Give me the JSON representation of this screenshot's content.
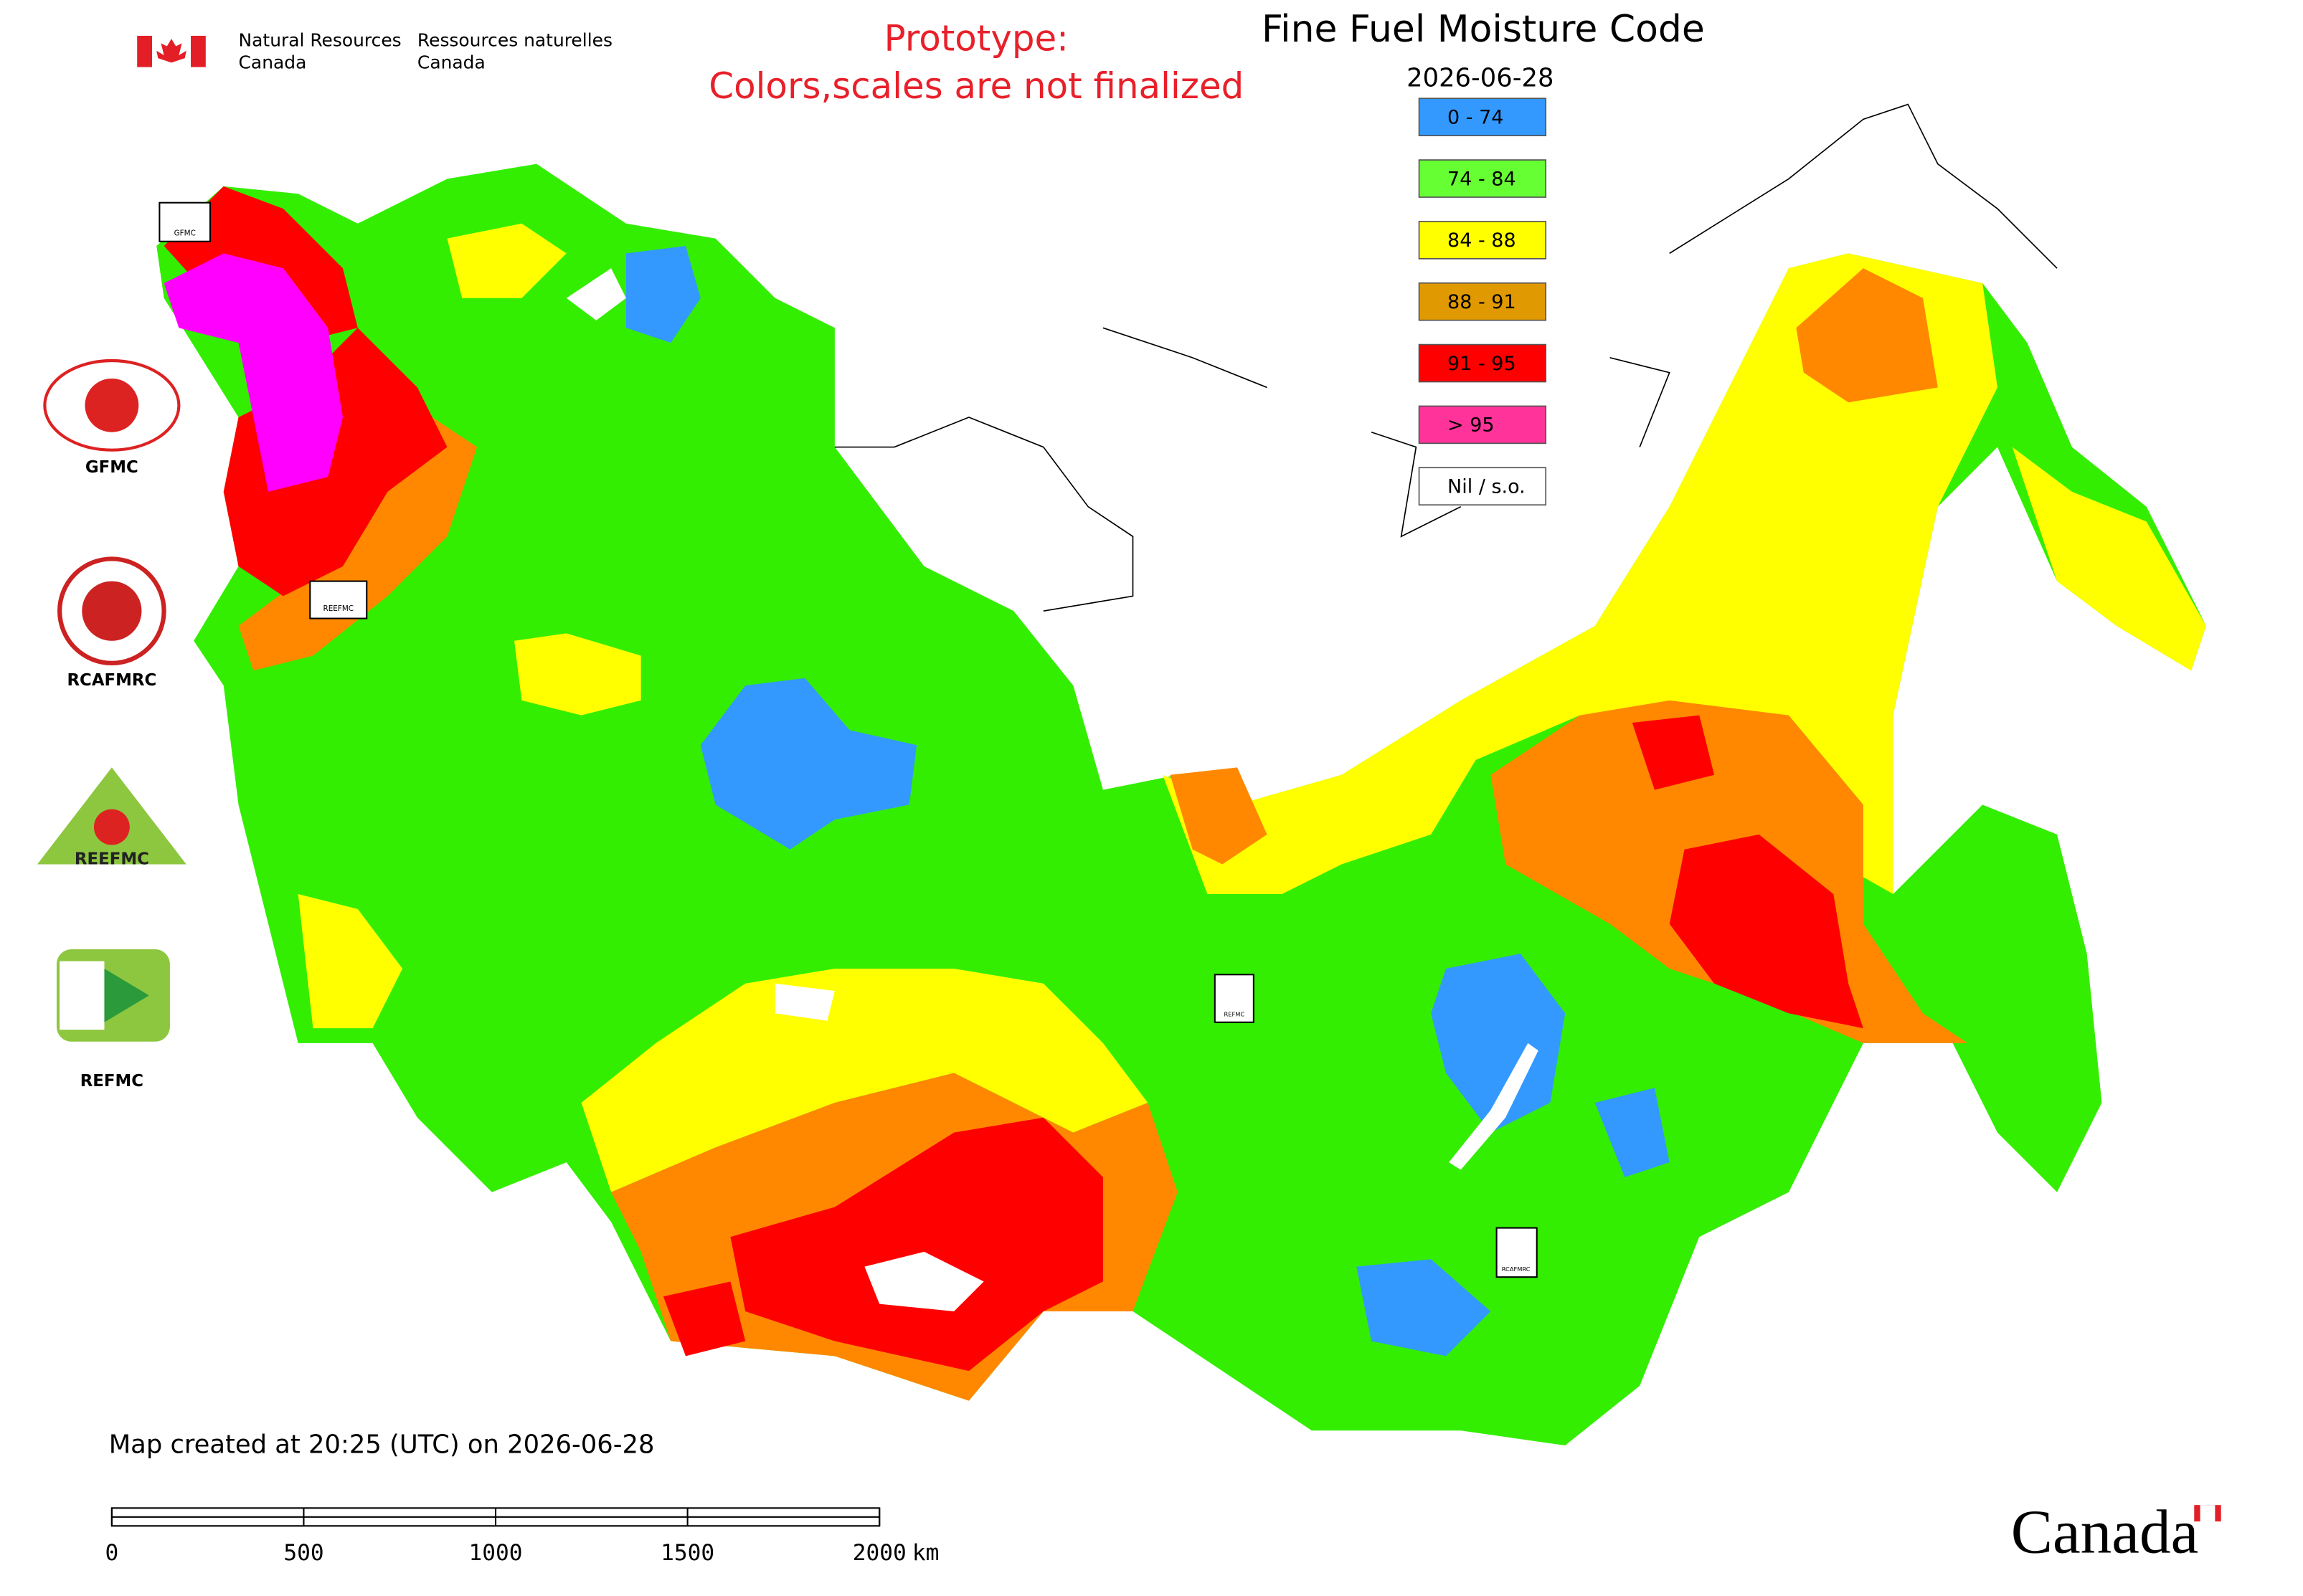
{
  "header": {
    "org_en_1": "Natural Resources",
    "org_en_2": "Canada",
    "org_fr_1": "Ressources naturelles",
    "org_fr_2": "Canada",
    "notice_1": "Prototype:",
    "notice_2": "Colors,scales are not finalized",
    "title": "Fine Fuel Moisture Code",
    "date": "2026-06-28"
  },
  "legend": [
    {
      "label": "0 - 74",
      "color": "#3399ff"
    },
    {
      "label": "74 - 84",
      "color": "#66ff33"
    },
    {
      "label": "84 - 88",
      "color": "#ffff00"
    },
    {
      "label": "88 - 91",
      "color": "#e09900"
    },
    {
      "label": "91 - 95",
      "color": "#ff0000"
    },
    {
      "label": "> 95",
      "color": "#ff3399"
    },
    {
      "label": "Nil / s.o.",
      "color": "#ffffff"
    }
  ],
  "logos": [
    "GFMC",
    "RCAFMRC",
    "REEFMC",
    "REFMC"
  ],
  "footer": {
    "created": "Map created at 20:25 (UTC) on 2026-06-28",
    "wordmark": "Canada"
  },
  "scale_bar": {
    "ticks": [
      0,
      500,
      1000,
      1500,
      2000
    ],
    "unit": "km"
  }
}
